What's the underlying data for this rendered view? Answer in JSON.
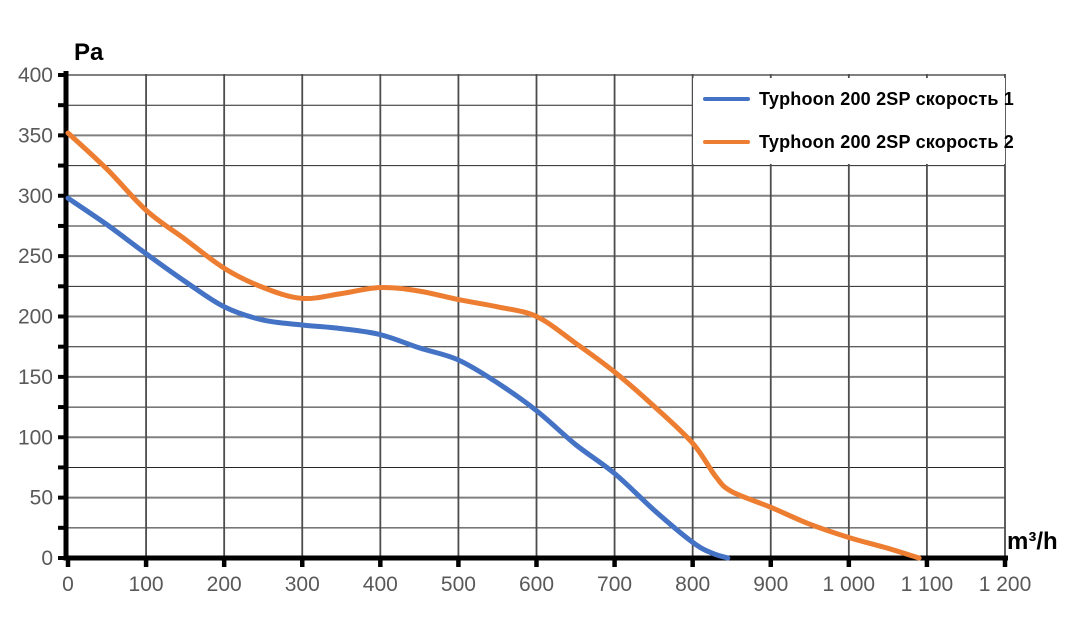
{
  "chart_data": {
    "type": "line",
    "title": "",
    "ylabel": "Pa",
    "xlabel": "m³/h",
    "xlim": [
      0,
      1200
    ],
    "ylim": [
      0,
      400
    ],
    "x_tick_step": 100,
    "y_label_step": 50,
    "y_grid_minor_step": 25,
    "grid": "on",
    "legend_position": "top-right inside plot, white background, no border",
    "x_tick_labels": [
      "0",
      "100",
      "200",
      "300",
      "400",
      "500",
      "600",
      "700",
      "800",
      "900",
      "1 000",
      "1 100",
      "1 200"
    ],
    "y_tick_labels": [
      "0",
      "50",
      "100",
      "150",
      "200",
      "250",
      "300",
      "350",
      "400"
    ],
    "series": [
      {
        "name": "Typhoon 200 2SP скорость 1",
        "color": "#4472C4",
        "x": [
          0,
          50,
          100,
          150,
          200,
          250,
          300,
          350,
          400,
          450,
          500,
          550,
          600,
          650,
          700,
          750,
          800,
          825,
          845
        ],
        "y": [
          298,
          276,
          252,
          229,
          208,
          197,
          193,
          190,
          185,
          174,
          164,
          145,
          122,
          94,
          70,
          40,
          13,
          4,
          0
        ]
      },
      {
        "name": "Typhoon 200 2SP скорость 2",
        "color": "#ED7D31",
        "x": [
          0,
          50,
          100,
          150,
          200,
          250,
          300,
          350,
          400,
          450,
          500,
          550,
          600,
          650,
          700,
          750,
          800,
          830,
          850,
          900,
          950,
          1000,
          1050,
          1090
        ],
        "y": [
          352,
          322,
          288,
          264,
          240,
          224,
          215,
          219,
          224,
          221,
          214,
          208,
          200,
          178,
          154,
          126,
          95,
          67,
          55,
          42,
          28,
          17,
          8,
          0
        ]
      }
    ],
    "colors": {
      "grid_major_h": "#808080",
      "grid_minor_h": "#262626",
      "grid_vertical": "#4d4d4d",
      "axis": "#000000",
      "tick_label": "#595959",
      "background": "#ffffff"
    }
  }
}
